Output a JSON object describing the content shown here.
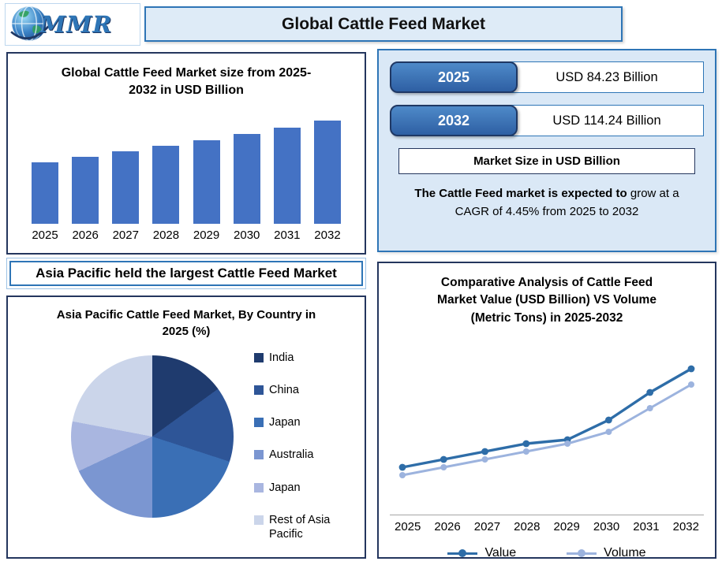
{
  "header": {
    "logo_text": "MMR",
    "title": "Global Cattle Feed Market"
  },
  "banner": {
    "text": "Asia Pacific held the largest Cattle Feed Market"
  },
  "stats": {
    "rows": [
      {
        "year": "2025",
        "value": "USD 84.23 Billion"
      },
      {
        "year": "2032",
        "value": "USD 114.24 Billion"
      }
    ],
    "label": "Market Size in USD Billion",
    "cagr_bold": "The Cattle Feed market is expected to",
    "cagr_rest": " grow at a CAGR of 4.45% from 2025 to 2032"
  },
  "colors": {
    "accent": "#2E75B6",
    "panel_border": "#24365E",
    "panel_bg": "#DAE8F6"
  },
  "chart_data": [
    {
      "type": "bar",
      "title": "Global Cattle Feed Market size from 2025-2032 in USD Billion",
      "categories": [
        "2025",
        "2026",
        "2027",
        "2028",
        "2029",
        "2030",
        "2031",
        "2032"
      ],
      "values": [
        84.23,
        87.98,
        91.89,
        95.98,
        100.25,
        104.71,
        109.37,
        114.24
      ],
      "ylabel": "USD Billion",
      "ylim": [
        40,
        125
      ],
      "bar_color": "#4472C4",
      "grid": false
    },
    {
      "type": "pie",
      "title": "Asia Pacific Cattle Feed Market, By Country in 2025 (%)",
      "labels": [
        "India",
        "China",
        "Japan",
        "Australia",
        "Japan",
        "Rest of Asia Pacific"
      ],
      "values": [
        15,
        15,
        20,
        18,
        10,
        22
      ],
      "colors": [
        "#1F3B6E",
        "#2E5597",
        "#3A6FB5",
        "#7B96D1",
        "#A9B6E0",
        "#CBD5EA"
      ],
      "legend_position": "right"
    },
    {
      "type": "line",
      "title": "Comparative Analysis of Cattle Feed Market Value (USD Billion) VS Volume (Metric Tons) in 2025-2032",
      "x": [
        "2025",
        "2026",
        "2027",
        "2028",
        "2029",
        "2030",
        "2031",
        "2032"
      ],
      "series": [
        {
          "name": "Value",
          "values": [
            40,
            42,
            44,
            46,
            47,
            52,
            59,
            65
          ],
          "color": "#2E6DA8"
        },
        {
          "name": "Volume",
          "values": [
            38,
            40,
            42,
            44,
            46,
            49,
            55,
            61
          ],
          "color": "#9CB3DE"
        }
      ],
      "ylim": [
        30,
        72
      ],
      "grid": false,
      "legend_position": "bottom"
    }
  ]
}
